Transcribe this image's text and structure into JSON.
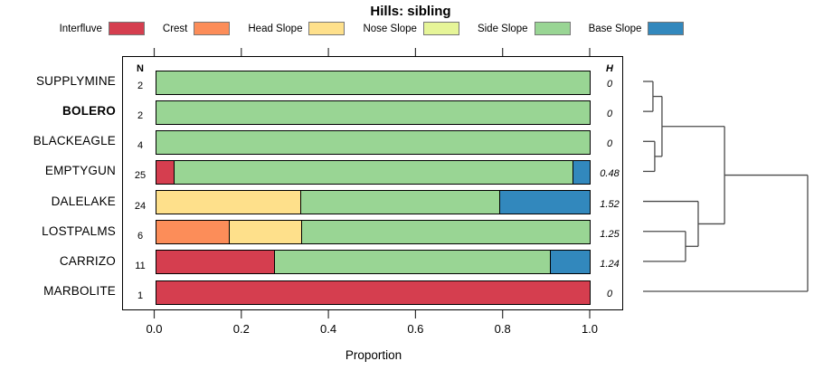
{
  "chart_data": {
    "type": "stacked_bar_horizontal_with_dendrogram",
    "title": "Hills: sibling",
    "xlabel": "Proportion",
    "xlim": [
      0,
      1
    ],
    "x_ticks": [
      "0.0",
      "0.2",
      "0.4",
      "0.6",
      "0.8",
      "1.0"
    ],
    "x_tick_values": [
      0.0,
      0.2,
      0.4,
      0.6,
      0.8,
      1.0
    ],
    "n_column_header": "N",
    "h_column_header": "H",
    "grid": false,
    "legend_position": "top",
    "categories": [
      "Interfluve",
      "Crest",
      "Head Slope",
      "Nose Slope",
      "Side Slope",
      "Base Slope"
    ],
    "colors": {
      "Interfluve": "#D53E4F",
      "Crest": "#FC8D59",
      "Head Slope": "#FEE08B",
      "Nose Slope": "#E6F598",
      "Side Slope": "#99D594",
      "Base Slope": "#3288BD"
    },
    "bar_border_color": "#000000",
    "dendrogram_line_color": "#4a4a4a",
    "rows": [
      {
        "label": "SUPPLYMINE",
        "bold": false,
        "n": "2",
        "h": "0",
        "segments": [
          {
            "category": "Side Slope",
            "value": 1.0
          }
        ]
      },
      {
        "label": "BOLERO",
        "bold": true,
        "n": "2",
        "h": "0",
        "segments": [
          {
            "category": "Side Slope",
            "value": 1.0
          }
        ]
      },
      {
        "label": "BLACKEAGLE",
        "bold": false,
        "n": "4",
        "h": "0",
        "segments": [
          {
            "category": "Side Slope",
            "value": 1.0
          }
        ]
      },
      {
        "label": "EMPTYGUN",
        "bold": false,
        "n": "25",
        "h": "0.48",
        "segments": [
          {
            "category": "Interfluve",
            "value": 0.04
          },
          {
            "category": "Side Slope",
            "value": 0.92
          },
          {
            "category": "Base Slope",
            "value": 0.04
          }
        ]
      },
      {
        "label": "DALELAKE",
        "bold": false,
        "n": "24",
        "h": "1.52",
        "segments": [
          {
            "category": "Head Slope",
            "value": 0.333
          },
          {
            "category": "Side Slope",
            "value": 0.458
          },
          {
            "category": "Base Slope",
            "value": 0.209
          }
        ]
      },
      {
        "label": "LOSTPALMS",
        "bold": false,
        "n": "6",
        "h": "1.25",
        "segments": [
          {
            "category": "Crest",
            "value": 0.167
          },
          {
            "category": "Head Slope",
            "value": 0.167
          },
          {
            "category": "Side Slope",
            "value": 0.666
          }
        ]
      },
      {
        "label": "CARRIZO",
        "bold": false,
        "n": "11",
        "h": "1.24",
        "segments": [
          {
            "category": "Interfluve",
            "value": 0.273
          },
          {
            "category": "Side Slope",
            "value": 0.636
          },
          {
            "category": "Base Slope",
            "value": 0.091
          }
        ]
      },
      {
        "label": "MARBOLITE",
        "bold": false,
        "n": "1",
        "h": "0",
        "segments": [
          {
            "category": "Interfluve",
            "value": 1.0
          }
        ]
      }
    ],
    "dendrogram": {
      "height": 1.0,
      "children": [
        {
          "height": 0.495,
          "children": [
            {
              "height": 0.115,
              "children": [
                {
                  "height": 0.06,
                  "children": [
                    {
                      "leaf": "SUPPLYMINE"
                    },
                    {
                      "leaf": "BOLERO"
                    }
                  ]
                },
                {
                  "height": 0.071,
                  "children": [
                    {
                      "leaf": "BLACKEAGLE"
                    },
                    {
                      "leaf": "EMPTYGUN"
                    }
                  ]
                }
              ]
            },
            {
              "height": 0.335,
              "children": [
                {
                  "leaf": "DALELAKE"
                },
                {
                  "height": 0.258,
                  "children": [
                    {
                      "leaf": "LOSTPALMS"
                    },
                    {
                      "leaf": "CARRIZO"
                    }
                  ]
                }
              ]
            }
          ]
        },
        {
          "leaf": "MARBOLITE"
        }
      ]
    }
  }
}
